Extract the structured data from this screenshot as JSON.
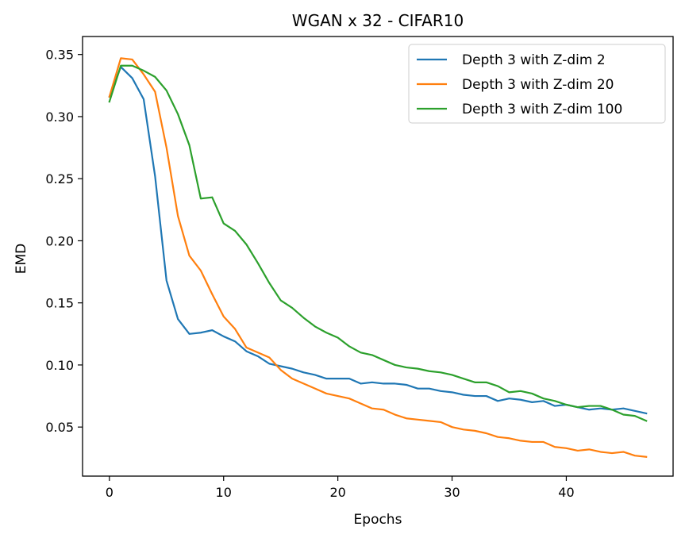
{
  "chart_data": {
    "type": "line",
    "title": "WGAN x 32 - CIFAR10",
    "xlabel": "Epochs",
    "ylabel": "EMD",
    "xlim": [
      -2.35,
      49.35
    ],
    "ylim": [
      0.0105,
      0.3645
    ],
    "xticks": [
      0,
      10,
      20,
      30,
      40
    ],
    "yticks": [
      0.05,
      0.1,
      0.15,
      0.2,
      0.25,
      0.3,
      0.35
    ],
    "xtick_labels": [
      "0",
      "10",
      "20",
      "30",
      "40"
    ],
    "ytick_labels": [
      "0.05",
      "0.10",
      "0.15",
      "0.20",
      "0.25",
      "0.30",
      "0.35"
    ],
    "grid": false,
    "legend_position": "top-right",
    "x": [
      0,
      1,
      2,
      3,
      4,
      5,
      6,
      7,
      8,
      9,
      10,
      11,
      12,
      13,
      14,
      15,
      16,
      17,
      18,
      19,
      20,
      21,
      22,
      23,
      24,
      25,
      26,
      27,
      28,
      29,
      30,
      31,
      32,
      33,
      34,
      35,
      36,
      37,
      38,
      39,
      40,
      41,
      42,
      43,
      44,
      45,
      46,
      47
    ],
    "series": [
      {
        "name": "Depth 3 with Z-dim 2",
        "color": "#1f77b4",
        "values": [
          0.316,
          0.34,
          0.331,
          0.314,
          0.252,
          0.168,
          0.137,
          0.125,
          0.126,
          0.128,
          0.123,
          0.119,
          0.111,
          0.107,
          0.101,
          0.099,
          0.097,
          0.094,
          0.092,
          0.089,
          0.089,
          0.089,
          0.085,
          0.086,
          0.085,
          0.085,
          0.084,
          0.081,
          0.081,
          0.079,
          0.078,
          0.076,
          0.075,
          0.075,
          0.071,
          0.073,
          0.072,
          0.07,
          0.071,
          0.067,
          0.068,
          0.066,
          0.064,
          0.065,
          0.064,
          0.065,
          0.063,
          0.061
        ]
      },
      {
        "name": "Depth 3 with Z-dim 20",
        "color": "#ff7f0e",
        "values": [
          0.316,
          0.347,
          0.346,
          0.334,
          0.32,
          0.275,
          0.22,
          0.188,
          0.176,
          0.157,
          0.139,
          0.129,
          0.114,
          0.11,
          0.106,
          0.096,
          0.089,
          0.085,
          0.081,
          0.077,
          0.075,
          0.073,
          0.069,
          0.065,
          0.064,
          0.06,
          0.057,
          0.056,
          0.055,
          0.054,
          0.05,
          0.048,
          0.047,
          0.045,
          0.042,
          0.041,
          0.039,
          0.038,
          0.038,
          0.034,
          0.033,
          0.031,
          0.032,
          0.03,
          0.029,
          0.03,
          0.027,
          0.026
        ]
      },
      {
        "name": "Depth 3 with Z-dim 100",
        "color": "#2ca02c",
        "values": [
          0.312,
          0.341,
          0.341,
          0.337,
          0.332,
          0.321,
          0.302,
          0.277,
          0.234,
          0.235,
          0.214,
          0.208,
          0.197,
          0.182,
          0.166,
          0.152,
          0.146,
          0.138,
          0.131,
          0.126,
          0.122,
          0.115,
          0.11,
          0.108,
          0.104,
          0.1,
          0.098,
          0.097,
          0.095,
          0.094,
          0.092,
          0.089,
          0.086,
          0.086,
          0.083,
          0.078,
          0.079,
          0.077,
          0.073,
          0.071,
          0.068,
          0.066,
          0.067,
          0.067,
          0.064,
          0.06,
          0.059,
          0.055
        ]
      }
    ]
  }
}
